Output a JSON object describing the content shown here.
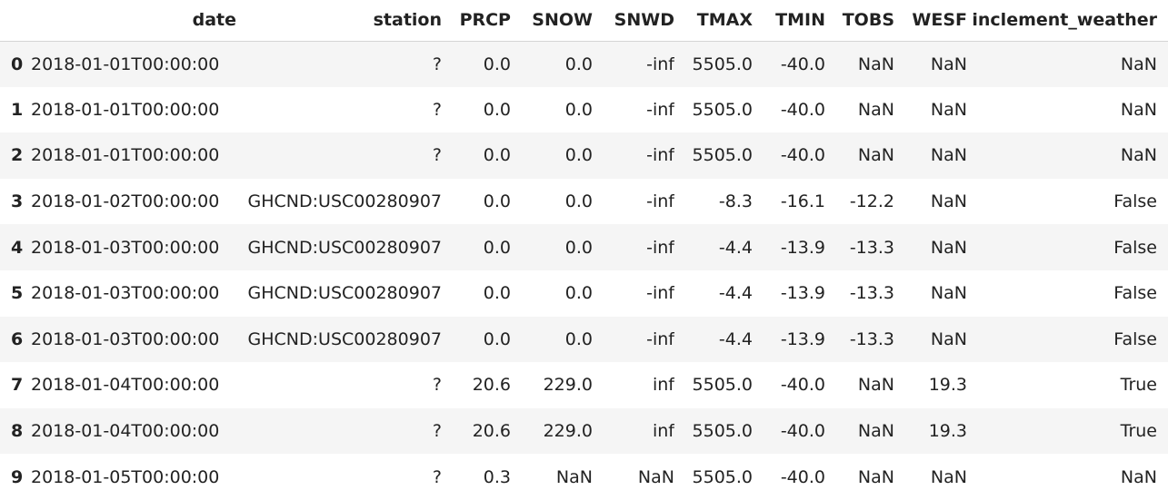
{
  "table": {
    "columns": [
      "date",
      "station",
      "PRCP",
      "SNOW",
      "SNWD",
      "TMAX",
      "TMIN",
      "TOBS",
      "WESF",
      "inclement_weather"
    ],
    "rows": [
      {
        "index": "0",
        "cells": [
          "2018-01-01T00:00:00",
          "?",
          "0.0",
          "0.0",
          "-inf",
          "5505.0",
          "-40.0",
          "NaN",
          "NaN",
          "NaN"
        ]
      },
      {
        "index": "1",
        "cells": [
          "2018-01-01T00:00:00",
          "?",
          "0.0",
          "0.0",
          "-inf",
          "5505.0",
          "-40.0",
          "NaN",
          "NaN",
          "NaN"
        ]
      },
      {
        "index": "2",
        "cells": [
          "2018-01-01T00:00:00",
          "?",
          "0.0",
          "0.0",
          "-inf",
          "5505.0",
          "-40.0",
          "NaN",
          "NaN",
          "NaN"
        ]
      },
      {
        "index": "3",
        "cells": [
          "2018-01-02T00:00:00",
          "GHCND:USC00280907",
          "0.0",
          "0.0",
          "-inf",
          "-8.3",
          "-16.1",
          "-12.2",
          "NaN",
          "False"
        ]
      },
      {
        "index": "4",
        "cells": [
          "2018-01-03T00:00:00",
          "GHCND:USC00280907",
          "0.0",
          "0.0",
          "-inf",
          "-4.4",
          "-13.9",
          "-13.3",
          "NaN",
          "False"
        ]
      },
      {
        "index": "5",
        "cells": [
          "2018-01-03T00:00:00",
          "GHCND:USC00280907",
          "0.0",
          "0.0",
          "-inf",
          "-4.4",
          "-13.9",
          "-13.3",
          "NaN",
          "False"
        ]
      },
      {
        "index": "6",
        "cells": [
          "2018-01-03T00:00:00",
          "GHCND:USC00280907",
          "0.0",
          "0.0",
          "-inf",
          "-4.4",
          "-13.9",
          "-13.3",
          "NaN",
          "False"
        ]
      },
      {
        "index": "7",
        "cells": [
          "2018-01-04T00:00:00",
          "?",
          "20.6",
          "229.0",
          "inf",
          "5505.0",
          "-40.0",
          "NaN",
          "19.3",
          "True"
        ]
      },
      {
        "index": "8",
        "cells": [
          "2018-01-04T00:00:00",
          "?",
          "20.6",
          "229.0",
          "inf",
          "5505.0",
          "-40.0",
          "NaN",
          "19.3",
          "True"
        ]
      },
      {
        "index": "9",
        "cells": [
          "2018-01-05T00:00:00",
          "?",
          "0.3",
          "NaN",
          "NaN",
          "5505.0",
          "-40.0",
          "NaN",
          "NaN",
          "NaN"
        ]
      }
    ]
  },
  "colors": {
    "stripe": "#f5f5f5",
    "text": "#222222",
    "header_border": "#d4d4d4"
  }
}
